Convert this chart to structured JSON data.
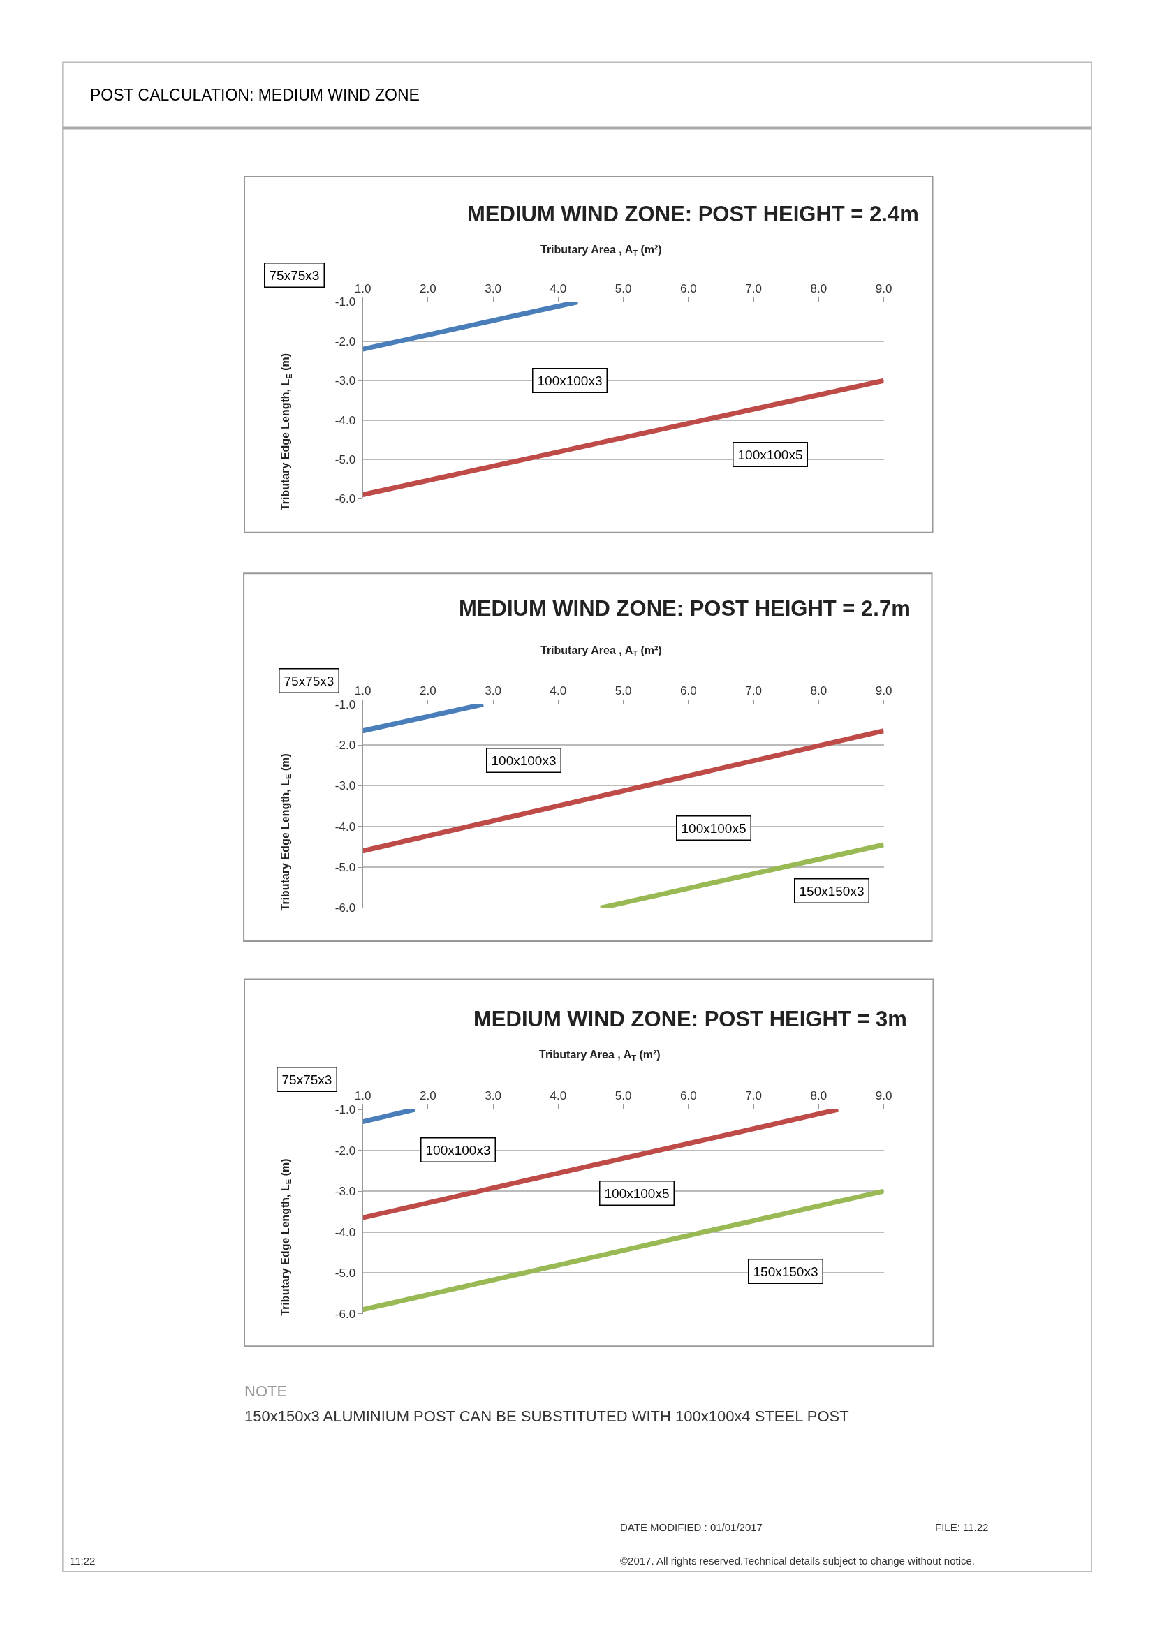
{
  "chart_data": [
    {
      "type": "line",
      "title": "MEDIUM WIND ZONE: POST HEIGHT = 2.4m",
      "xlabel": "Tributary Area , A$_{T}$ (m²)",
      "ylabel": "Tributary Edge Length, L$_{E}$ (m)",
      "xlim": [
        1,
        9
      ],
      "ylim": [
        -6,
        -1
      ],
      "xticks": [
        {
          "value": 1,
          "label": "1.0"
        },
        {
          "value": 2,
          "label": "2.0"
        },
        {
          "value": 3,
          "label": "3.0"
        },
        {
          "value": 4,
          "label": "4.0"
        },
        {
          "value": 5,
          "label": "5.0"
        },
        {
          "value": 6,
          "label": "6.0"
        },
        {
          "value": 7,
          "label": "7.0"
        },
        {
          "value": 8,
          "label": "8.0"
        },
        {
          "value": 9,
          "label": "9.0"
        }
      ],
      "yticks": [
        {
          "value": -1,
          "label": "-1.0"
        },
        {
          "value": -2,
          "label": "-2.0"
        },
        {
          "value": -3,
          "label": "-3.0"
        },
        {
          "value": -4,
          "label": "-4.0"
        },
        {
          "value": -5,
          "label": "-5.0"
        },
        {
          "value": -6,
          "label": "-6.0"
        }
      ],
      "grid": "y",
      "marker": "none",
      "line_style": "solid",
      "series": [
        {
          "color": "#4a7ebb",
          "x": [
            1.0,
            4.3
          ],
          "values": [
            -2.2,
            -1.0
          ]
        },
        {
          "color": "#be4b48",
          "x": [
            1.0,
            9.0
          ],
          "values": [
            -5.9,
            -3.0
          ]
        }
      ],
      "annotations": [
        "75x75x3",
        "100x100x3",
        "100x100x5",
        "POST CALCULATION: MEDIUM WIND ZONE"
      ]
    },
    {
      "type": "line",
      "title": "MEDIUM WIND ZONE: POST HEIGHT = 2.7m",
      "xlabel": "Tributary Area , A$_{T}$ (m²)",
      "ylabel": "Tributary Edge Length, L$_{E}$ (m)",
      "xlim": [
        1,
        9
      ],
      "ylim": [
        -6,
        -1
      ],
      "xticks": [
        {
          "value": 1,
          "label": "1.0"
        },
        {
          "value": 2,
          "label": "2.0"
        },
        {
          "value": 3,
          "label": "3.0"
        },
        {
          "value": 4,
          "label": "4.0"
        },
        {
          "value": 5,
          "label": "5.0"
        },
        {
          "value": 6,
          "label": "6.0"
        },
        {
          "value": 7,
          "label": "7.0"
        },
        {
          "value": 8,
          "label": "8.0"
        },
        {
          "value": 9,
          "label": "9.0"
        }
      ],
      "yticks": [
        {
          "value": -1,
          "label": "-1.0"
        },
        {
          "value": -2,
          "label": "-2.0"
        },
        {
          "value": -3,
          "label": "-3.0"
        },
        {
          "value": -4,
          "label": "-4.0"
        },
        {
          "value": -5,
          "label": "-5.0"
        },
        {
          "value": -6,
          "label": "-6.0"
        }
      ],
      "grid": "y",
      "marker": "none",
      "line_style": "solid",
      "series": [
        {
          "color": "#4a7ebb",
          "x": [
            1.0,
            2.85
          ],
          "values": [
            -1.65,
            -1.0
          ]
        },
        {
          "color": "#be4b48",
          "x": [
            1.0,
            9.0
          ],
          "values": [
            -4.6,
            -1.65
          ]
        },
        {
          "color": "#98b954",
          "x": [
            4.65,
            9.0
          ],
          "values": [
            -6.0,
            -4.45
          ]
        }
      ],
      "annotations": [
        "75x75x3",
        "100x100x3",
        "100x100x5",
        "150x150x3"
      ]
    },
    {
      "type": "line",
      "title": "MEDIUM WIND ZONE: POST HEIGHT = 3m",
      "xlabel": "Tributary Area , A$_{T}$ (m²)",
      "ylabel": "Tributary Edge Length, L$_{E}$ (m)",
      "xlim": [
        1,
        9
      ],
      "ylim": [
        -6,
        -1
      ],
      "xticks": [
        {
          "value": 1,
          "label": "1.0"
        },
        {
          "value": 2,
          "label": "2.0"
        },
        {
          "value": 3,
          "label": "3.0"
        },
        {
          "value": 4,
          "label": "4.0"
        },
        {
          "value": 5,
          "label": "5.0"
        },
        {
          "value": 6,
          "label": "6.0"
        },
        {
          "value": 7,
          "label": "7.0"
        },
        {
          "value": 8,
          "label": "8.0"
        },
        {
          "value": 9,
          "label": "9.0"
        }
      ],
      "yticks": [
        {
          "value": -1,
          "label": "-1.0"
        },
        {
          "value": -2,
          "label": "-2.0"
        },
        {
          "value": -3,
          "label": "-3.0"
        },
        {
          "value": -4,
          "label": "-4.0"
        },
        {
          "value": -5,
          "label": "-5.0"
        },
        {
          "value": -6,
          "label": "-6.0"
        }
      ],
      "grid": "y",
      "marker": "none",
      "line_style": "solid",
      "series": [
        {
          "color": "#4a7ebb",
          "x": [
            1.0,
            1.8
          ],
          "values": [
            -1.3,
            -1.0
          ]
        },
        {
          "color": "#be4b48",
          "x": [
            1.0,
            8.3
          ],
          "values": [
            -3.65,
            -1.0
          ]
        },
        {
          "color": "#98b954",
          "x": [
            1.0,
            9.0
          ],
          "values": [
            -5.9,
            -3.0
          ]
        }
      ],
      "annotations": [
        "75x75x3",
        "100x100x3",
        "100x100x5",
        "150x150x3",
        "NOTE",
        "150x150x3 ALUMINIUM POST CAN BE SUBSTITUTED WITH 100x100x4 STEEL POST",
        "DATE MODIFIED : 01/01/2017",
        "FILE: 11.22",
        "©2017. All rights reserved.Technical details subject to change without notice.",
        "11:22"
      ]
    }
  ]
}
